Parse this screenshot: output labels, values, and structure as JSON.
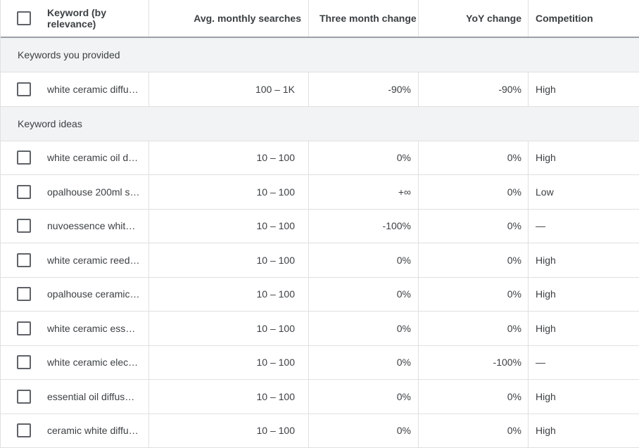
{
  "header": {
    "keyword": "Keyword (by relevance)",
    "avg_monthly": "Avg. monthly searches",
    "three_month": "Three month change",
    "yoy": "YoY change",
    "competition": "Competition"
  },
  "sections": {
    "provided": "Keywords you provided",
    "ideas": "Keyword ideas"
  },
  "provided_rows": [
    {
      "keyword": "white ceramic diffu…",
      "avg": "100 – 1K",
      "three": "-90%",
      "yoy": "-90%",
      "competition": "High"
    }
  ],
  "idea_rows": [
    {
      "keyword": "white ceramic oil di…",
      "avg": "10 – 100",
      "three": "0%",
      "yoy": "0%",
      "competition": "High"
    },
    {
      "keyword": "opalhouse 200ml s…",
      "avg": "10 – 100",
      "three": "+∞",
      "yoy": "0%",
      "competition": "Low"
    },
    {
      "keyword": "nuvoessence white …",
      "avg": "10 – 100",
      "three": "-100%",
      "yoy": "0%",
      "competition": "—"
    },
    {
      "keyword": "white ceramic reed …",
      "avg": "10 – 100",
      "three": "0%",
      "yoy": "0%",
      "competition": "High"
    },
    {
      "keyword": "opalhouse ceramic …",
      "avg": "10 – 100",
      "three": "0%",
      "yoy": "0%",
      "competition": "High"
    },
    {
      "keyword": "white ceramic esse…",
      "avg": "10 – 100",
      "three": "0%",
      "yoy": "0%",
      "competition": "High"
    },
    {
      "keyword": "white ceramic elect…",
      "avg": "10 – 100",
      "three": "0%",
      "yoy": "-100%",
      "competition": "—"
    },
    {
      "keyword": "essential oil diffuse…",
      "avg": "10 – 100",
      "three": "0%",
      "yoy": "0%",
      "competition": "High"
    },
    {
      "keyword": "ceramic white diffu…",
      "avg": "10 – 100",
      "three": "0%",
      "yoy": "0%",
      "competition": "High"
    }
  ]
}
